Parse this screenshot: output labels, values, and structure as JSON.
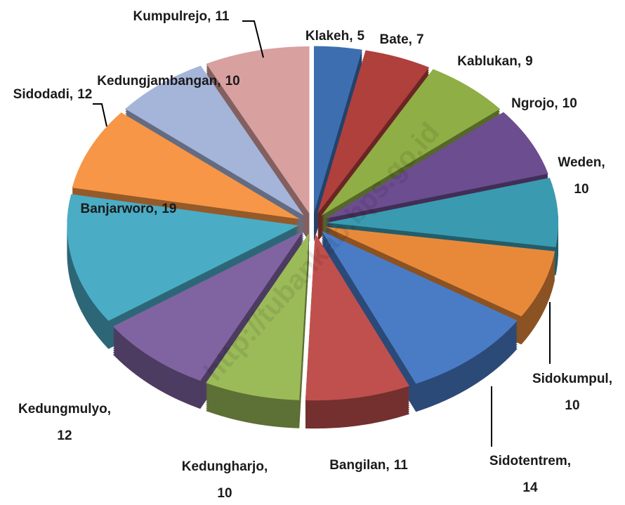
{
  "chart_data": {
    "type": "pie",
    "categories": [
      "Klakeh",
      "Bate",
      "Kablukan",
      "Ngrojo",
      "Weden",
      "Sidokumpul",
      "Sidotentrem",
      "Bangilan",
      "Kedungharjo",
      "Kedungmulyo",
      "Banjarworo",
      "Sidodadi",
      "Kedungjambangan",
      "Kumpulrejo"
    ],
    "values": [
      5,
      7,
      9,
      10,
      10,
      10,
      14,
      11,
      10,
      12,
      19,
      12,
      10,
      11
    ],
    "colors": [
      "#3d6fb0",
      "#b0403c",
      "#8fae45",
      "#6c4d8f",
      "#3a9bb0",
      "#e8893a",
      "#4a7cc6",
      "#c0504d",
      "#9bbb59",
      "#8064a2",
      "#4bacc6",
      "#f79646",
      "#a5b4d9",
      "#d9a0a0"
    ],
    "watermark": "http://tubankab.bps.go.id"
  }
}
